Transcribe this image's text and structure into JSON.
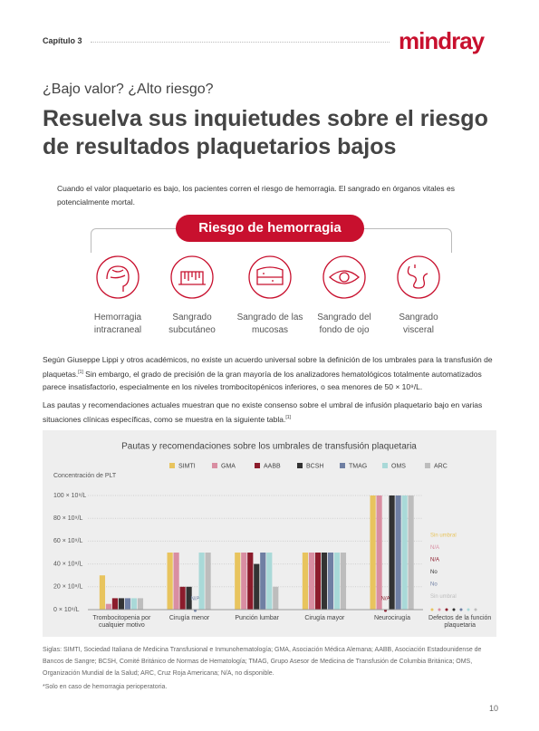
{
  "header": {
    "chapter": "Capítulo 3",
    "logo": "mindray"
  },
  "subtitle": "¿Bajo valor? ¿Alto riesgo?",
  "title": "Resuelva sus inquietudes sobre el riesgo de resultados plaquetarios bajos",
  "intro": "Cuando el valor plaquetario es bajo, los pacientes corren el riesgo de hemorragia. El sangrado en órganos vitales es potencialmente mortal.",
  "risk": {
    "title": "Riesgo de hemorragia",
    "items": [
      "Hemorragia intracraneal",
      "Sangrado subcutáneo",
      "Sangrado de las mucosas",
      "Sangrado del fondo de ojo",
      "Sangrado visceral"
    ]
  },
  "paragraphs": [
    [
      "Según Giuseppe Lippi y otros académicos, no existe un acuerdo universal sobre la definición de los umbrales para la transfusión de plaquetas.",
      "[1]",
      " Sin embargo, el grado de precisión de la gran mayoría de los analizadores hematológicos totalmente automatizados parece insatisfactorio, especialmente en los niveles trombocitopénicos inferiores, o sea menores de 50 × 10⁹/L."
    ],
    [
      "Las pautas y recomendaciones actuales muestran que no existe consenso sobre el umbral de infusión plaquetario bajo en varias situaciones clínicas específicas, como se muestra en la siguiente tabla.",
      "[1]",
      ""
    ]
  ],
  "chart_data": {
    "type": "bar",
    "title": "Pautas y recomendaciones sobre los umbrales de transfusión plaquetaria",
    "y_label": "Concentración de PLT",
    "categories": [
      "Trombocitopenia por cualquier motivo",
      "Cirugía menor",
      "Punción lumbar",
      "Cirugía mayor",
      "Neurocirugía",
      "Defectos de la función plaquetaria"
    ],
    "series": [
      {
        "name": "SIMTI",
        "color": "#e8c45e",
        "values": [
          30,
          50,
          50,
          50,
          100,
          null
        ]
      },
      {
        "name": "GMA",
        "color": "#d98ea2",
        "values": [
          5,
          50,
          50,
          50,
          100,
          null
        ]
      },
      {
        "name": "AABB",
        "color": "#8c1c2c",
        "values": [
          10,
          20,
          50,
          50,
          null,
          null
        ],
        "value_labels": [
          null,
          null,
          null,
          null,
          "N/A",
          null
        ]
      },
      {
        "name": "BCSH",
        "color": "#333333",
        "values": [
          10,
          20,
          40,
          50,
          100,
          null
        ]
      },
      {
        "name": "TMAG",
        "color": "#6f7fa3",
        "values": [
          10,
          null,
          50,
          50,
          100,
          null
        ],
        "value_labels": [
          null,
          "N/A",
          null,
          null,
          null,
          null
        ]
      },
      {
        "name": "OMS",
        "color": "#a9d9d8",
        "values": [
          10,
          50,
          50,
          50,
          100,
          null
        ]
      },
      {
        "name": "ARC",
        "color": "#bdbdbd",
        "values": [
          10,
          50,
          20,
          50,
          100,
          null
        ]
      }
    ],
    "notes": [
      "Sin umbral",
      "N/A",
      "N/A",
      "No",
      "No",
      "Sin umbral"
    ],
    "ylim": [
      0,
      100
    ],
    "yticks": [
      {
        "value": 0,
        "label": "0 × 10⁹/L"
      },
      {
        "value": 20,
        "label": "20 × 10⁹/L"
      },
      {
        "value": 40,
        "label": "40 × 10⁹/L"
      },
      {
        "value": 60,
        "label": "60 × 10⁹/L"
      },
      {
        "value": 80,
        "label": "80 × 10⁹/L"
      },
      {
        "value": 100,
        "label": "100 × 10⁹/L"
      }
    ],
    "grid": true
  },
  "footnotes": [
    "Siglas: SIMTI, Sociedad Italiana de Medicina Transfusional e Inmunohematología; GMA, Asociación Médica Alemana; AABB, Asociación Estadounidense de Bancos de Sangre; BCSH, Comité Británico de Normas de Hematología; TMAG, Grupo Asesor de Medicina de Transfusión de Columbia Británica; OMS, Organización Mundial de la Salud; ARC, Cruz Roja Americana; N/A, no disponible.",
    "*Solo en caso de hemorragia perioperatoria."
  ],
  "page_number": "10"
}
